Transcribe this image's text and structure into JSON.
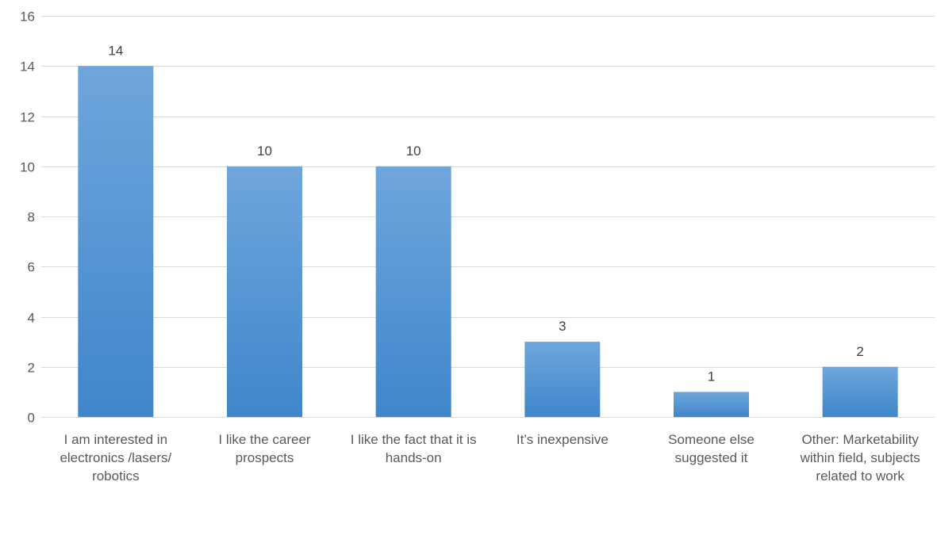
{
  "chart_data": {
    "type": "bar",
    "categories": [
      "I am interested in electronics /lasers/ robotics",
      "I like the career prospects",
      "I like the fact that it is hands-on",
      "It’s inexpensive",
      "Someone else suggested it",
      "Other: Marketability within field, subjects related to work"
    ],
    "values": [
      14,
      10,
      10,
      3,
      1,
      2
    ],
    "data_labels": [
      "14",
      "10",
      "10",
      "3",
      "1",
      "2"
    ],
    "y_ticks": [
      0,
      2,
      4,
      6,
      8,
      10,
      12,
      14,
      16
    ],
    "ylim": [
      0,
      16
    ],
    "grid": true,
    "legend": "none",
    "bar_color_top": "#6fa6dc",
    "bar_color_bottom": "#3f86cb",
    "grid_color": "#d9d9d9"
  }
}
